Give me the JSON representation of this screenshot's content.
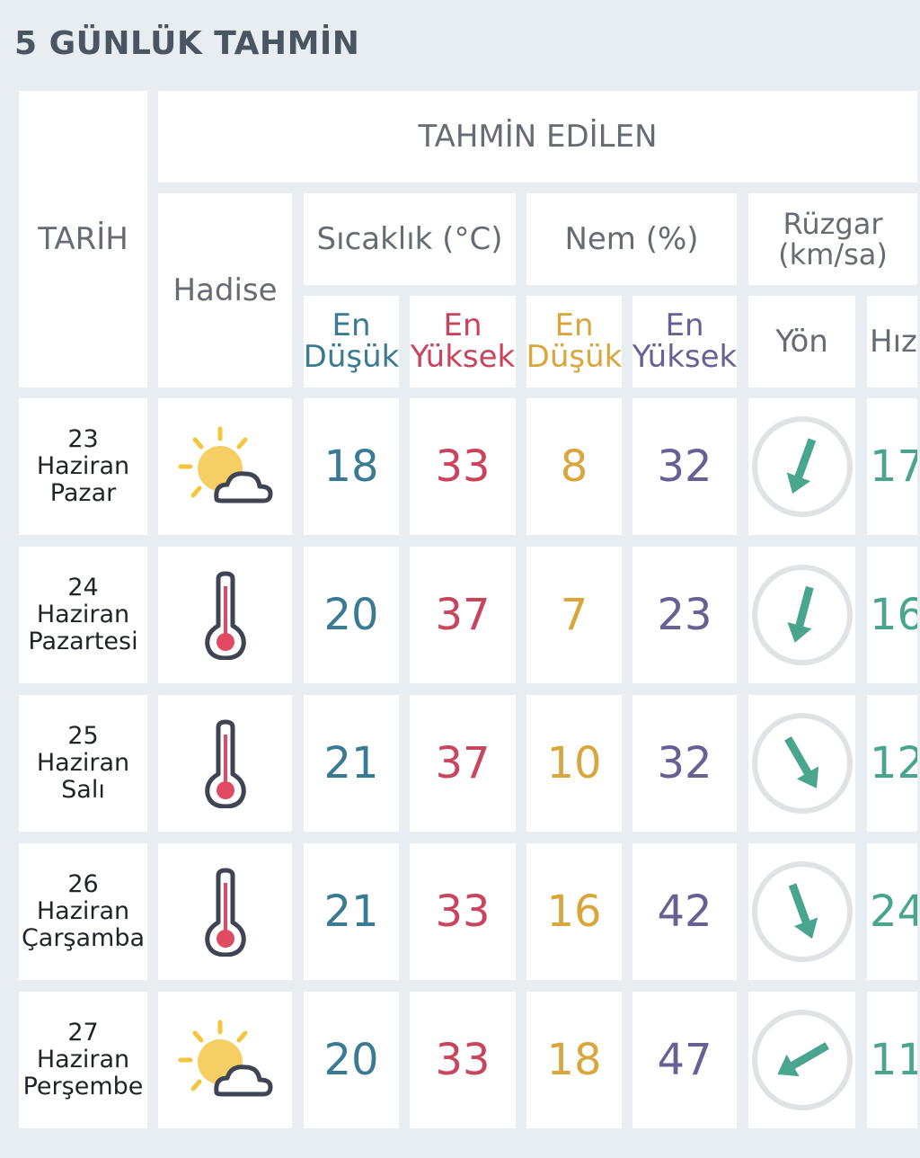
{
  "page_title": "5 GÜNLÜK TAHMİN",
  "headers": {
    "date": "TARİH",
    "forecast": "TAHMİN EDİLEN",
    "phenomenon": "Hadise",
    "temperature": "Sıcaklık (°C)",
    "humidity": "Nem (%)",
    "wind_line1": "Rüzgar",
    "wind_line2": "(km/sa)",
    "en": "En",
    "lowest": "Düşük",
    "highest": "Yüksek",
    "direction": "Yön",
    "speed": "Hız"
  },
  "colors": {
    "temp_min": "#3b7a93",
    "temp_max": "#c9455e",
    "hum_min": "#d8a63a",
    "hum_max": "#6a5f93",
    "wind": "#4aa58f"
  },
  "rows": [
    {
      "day": "23",
      "month": "Haziran",
      "weekday": "Pazar",
      "icon": "partly-cloudy-icon",
      "temp_min": "18",
      "temp_max": "33",
      "hum_min": "8",
      "hum_max": "32",
      "wind_dir_deg": 200,
      "wind_speed": "17"
    },
    {
      "day": "24",
      "month": "Haziran",
      "weekday": "Pazartesi",
      "icon": "thermometer-icon",
      "temp_min": "20",
      "temp_max": "37",
      "hum_min": "7",
      "hum_max": "23",
      "wind_dir_deg": 195,
      "wind_speed": "16"
    },
    {
      "day": "25",
      "month": "Haziran",
      "weekday": "Salı",
      "icon": "thermometer-icon",
      "temp_min": "21",
      "temp_max": "37",
      "hum_min": "10",
      "hum_max": "32",
      "wind_dir_deg": 150,
      "wind_speed": "12"
    },
    {
      "day": "26",
      "month": "Haziran",
      "weekday": "Çarşamba",
      "icon": "thermometer-icon",
      "temp_min": "21",
      "temp_max": "33",
      "hum_min": "16",
      "hum_max": "42",
      "wind_dir_deg": 160,
      "wind_speed": "24"
    },
    {
      "day": "27",
      "month": "Haziran",
      "weekday": "Perşembe",
      "icon": "partly-cloudy-icon",
      "temp_min": "20",
      "temp_max": "33",
      "hum_min": "18",
      "hum_max": "47",
      "wind_dir_deg": 240,
      "wind_speed": "11"
    }
  ]
}
